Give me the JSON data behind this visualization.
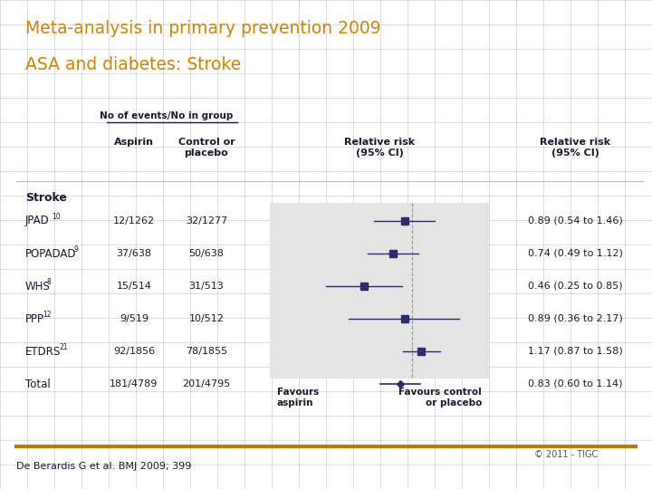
{
  "title_line1": "Meta-analysis in primary prevention 2009",
  "title_line2": "ASA and diabetes: Stroke",
  "title_color": "#C8860A",
  "bg_color": "#FFFFFF",
  "grid_color": "#C8D0DC",
  "table_header_color": "#1A1A2E",
  "body_text_color": "#1A1A2E",
  "forest_bg_color": "#E4E4E4",
  "studies": [
    "JPAD",
    "POPADAD",
    "WHS",
    "PPP",
    "ETDRS",
    "Total"
  ],
  "superscripts": [
    "10",
    "9",
    "8",
    "12",
    "21",
    ""
  ],
  "aspirin": [
    "12/1262",
    "37/638",
    "15/514",
    "9/519",
    "92/1856",
    "181/4789"
  ],
  "control": [
    "32/1277",
    "50/638",
    "31/513",
    "10/512",
    "78/1855",
    "201/4795"
  ],
  "rr": [
    0.89,
    0.74,
    0.46,
    0.89,
    1.17,
    0.83
  ],
  "ci_low": [
    0.54,
    0.49,
    0.25,
    0.36,
    0.87,
    0.6
  ],
  "ci_high": [
    1.46,
    1.12,
    0.85,
    2.17,
    1.58,
    1.14
  ],
  "rr_text": [
    "0.89 (0.54 to 1.46)",
    "0.74 (0.49 to 1.12)",
    "0.46 (0.25 to 0.85)",
    "0.89 (0.36 to 2.17)",
    "1.17 (0.87 to 1.58)",
    "0.83 (0.60 to 1.14)"
  ],
  "is_total": [
    false,
    false,
    false,
    false,
    false,
    true
  ],
  "xmin": 0.1,
  "xmax": 3.5,
  "footer_text": "De Berardis G et al. BMJ 2009; 399",
  "copyright_text": "© 2011 - TIGC"
}
